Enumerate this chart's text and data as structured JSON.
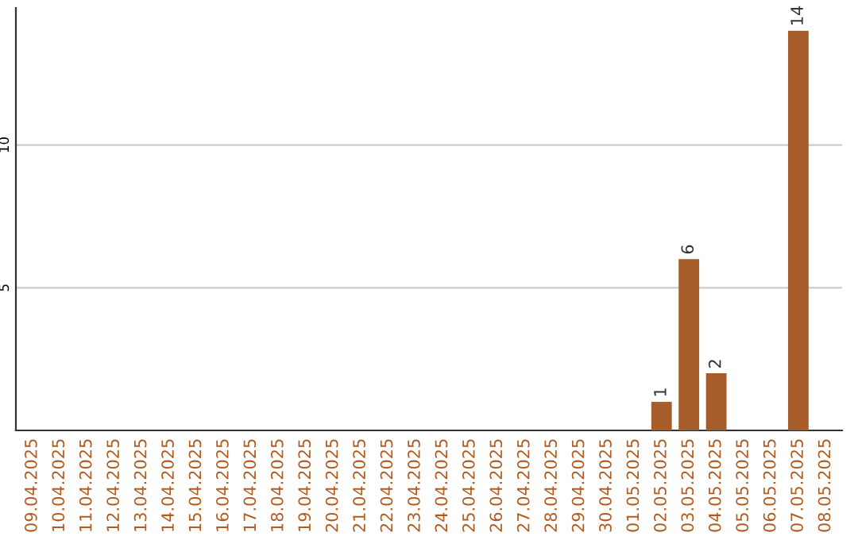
{
  "chart_data": {
    "type": "bar",
    "categories": [
      "09.04.2025",
      "10.04.2025",
      "11.04.2025",
      "12.04.2025",
      "13.04.2025",
      "14.04.2025",
      "15.04.2025",
      "16.04.2025",
      "17.04.2025",
      "18.04.2025",
      "19.04.2025",
      "20.04.2025",
      "21.04.2025",
      "22.04.2025",
      "23.04.2025",
      "24.04.2025",
      "25.04.2025",
      "26.04.2025",
      "27.04.2025",
      "28.04.2025",
      "29.04.2025",
      "30.04.2025",
      "01.05.2025",
      "02.05.2025",
      "03.05.2025",
      "04.05.2025",
      "05.05.2025",
      "06.05.2025",
      "07.05.2025",
      "08.05.2025"
    ],
    "values": [
      0,
      0,
      0,
      0,
      0,
      0,
      0,
      0,
      0,
      0,
      0,
      0,
      0,
      0,
      0,
      0,
      0,
      0,
      0,
      0,
      0,
      0,
      0,
      1,
      6,
      2,
      0,
      0,
      14,
      0
    ],
    "value_labels": [
      null,
      null,
      null,
      null,
      null,
      null,
      null,
      null,
      null,
      null,
      null,
      null,
      null,
      null,
      null,
      null,
      null,
      null,
      null,
      null,
      null,
      null,
      null,
      "1",
      "6",
      "2",
      null,
      null,
      "14",
      null
    ],
    "color": "#a65d2a",
    "ylim": [
      0,
      14.8
    ],
    "yticks": [
      5,
      10
    ],
    "grid": "y"
  }
}
